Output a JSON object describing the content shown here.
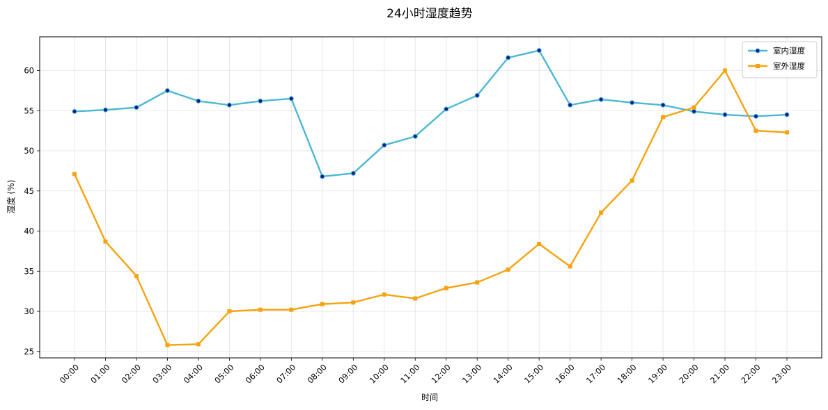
{
  "chart_data": {
    "type": "line",
    "title": "24小时湿度趋势",
    "xlabel": "时间",
    "ylabel": "湿度 (%)",
    "categories": [
      "00:00",
      "01:00",
      "02:00",
      "03:00",
      "04:00",
      "05:00",
      "06:00",
      "07:00",
      "08:00",
      "09:00",
      "10:00",
      "11:00",
      "12:00",
      "13:00",
      "14:00",
      "15:00",
      "16:00",
      "17:00",
      "18:00",
      "19:00",
      "20:00",
      "21:00",
      "22:00",
      "23:00"
    ],
    "ylim": [
      24.2,
      64.2
    ],
    "yticks": [
      25,
      30,
      35,
      40,
      45,
      50,
      55,
      60
    ],
    "grid": true,
    "legend_position": "top-right",
    "series": [
      {
        "name": "室内湿度",
        "color": "#4bb8d3",
        "marker": "circle",
        "marker_color": "#0a1f8f",
        "values": [
          54.9,
          55.1,
          55.4,
          57.5,
          56.2,
          55.7,
          56.2,
          56.5,
          46.8,
          47.2,
          50.7,
          51.8,
          55.2,
          56.9,
          61.6,
          62.5,
          55.7,
          56.4,
          56.0,
          55.7,
          54.9,
          54.5,
          54.3,
          54.5
        ]
      },
      {
        "name": "室外湿度",
        "color": "#f5a30f",
        "marker": "square",
        "marker_color": "#f5a30f",
        "values": [
          47.1,
          38.7,
          34.4,
          25.8,
          25.9,
          30.0,
          30.2,
          30.2,
          30.9,
          31.1,
          32.1,
          31.6,
          32.9,
          33.6,
          35.2,
          38.4,
          35.6,
          42.3,
          46.3,
          54.2,
          55.4,
          60.0,
          52.5,
          52.3
        ]
      }
    ]
  }
}
